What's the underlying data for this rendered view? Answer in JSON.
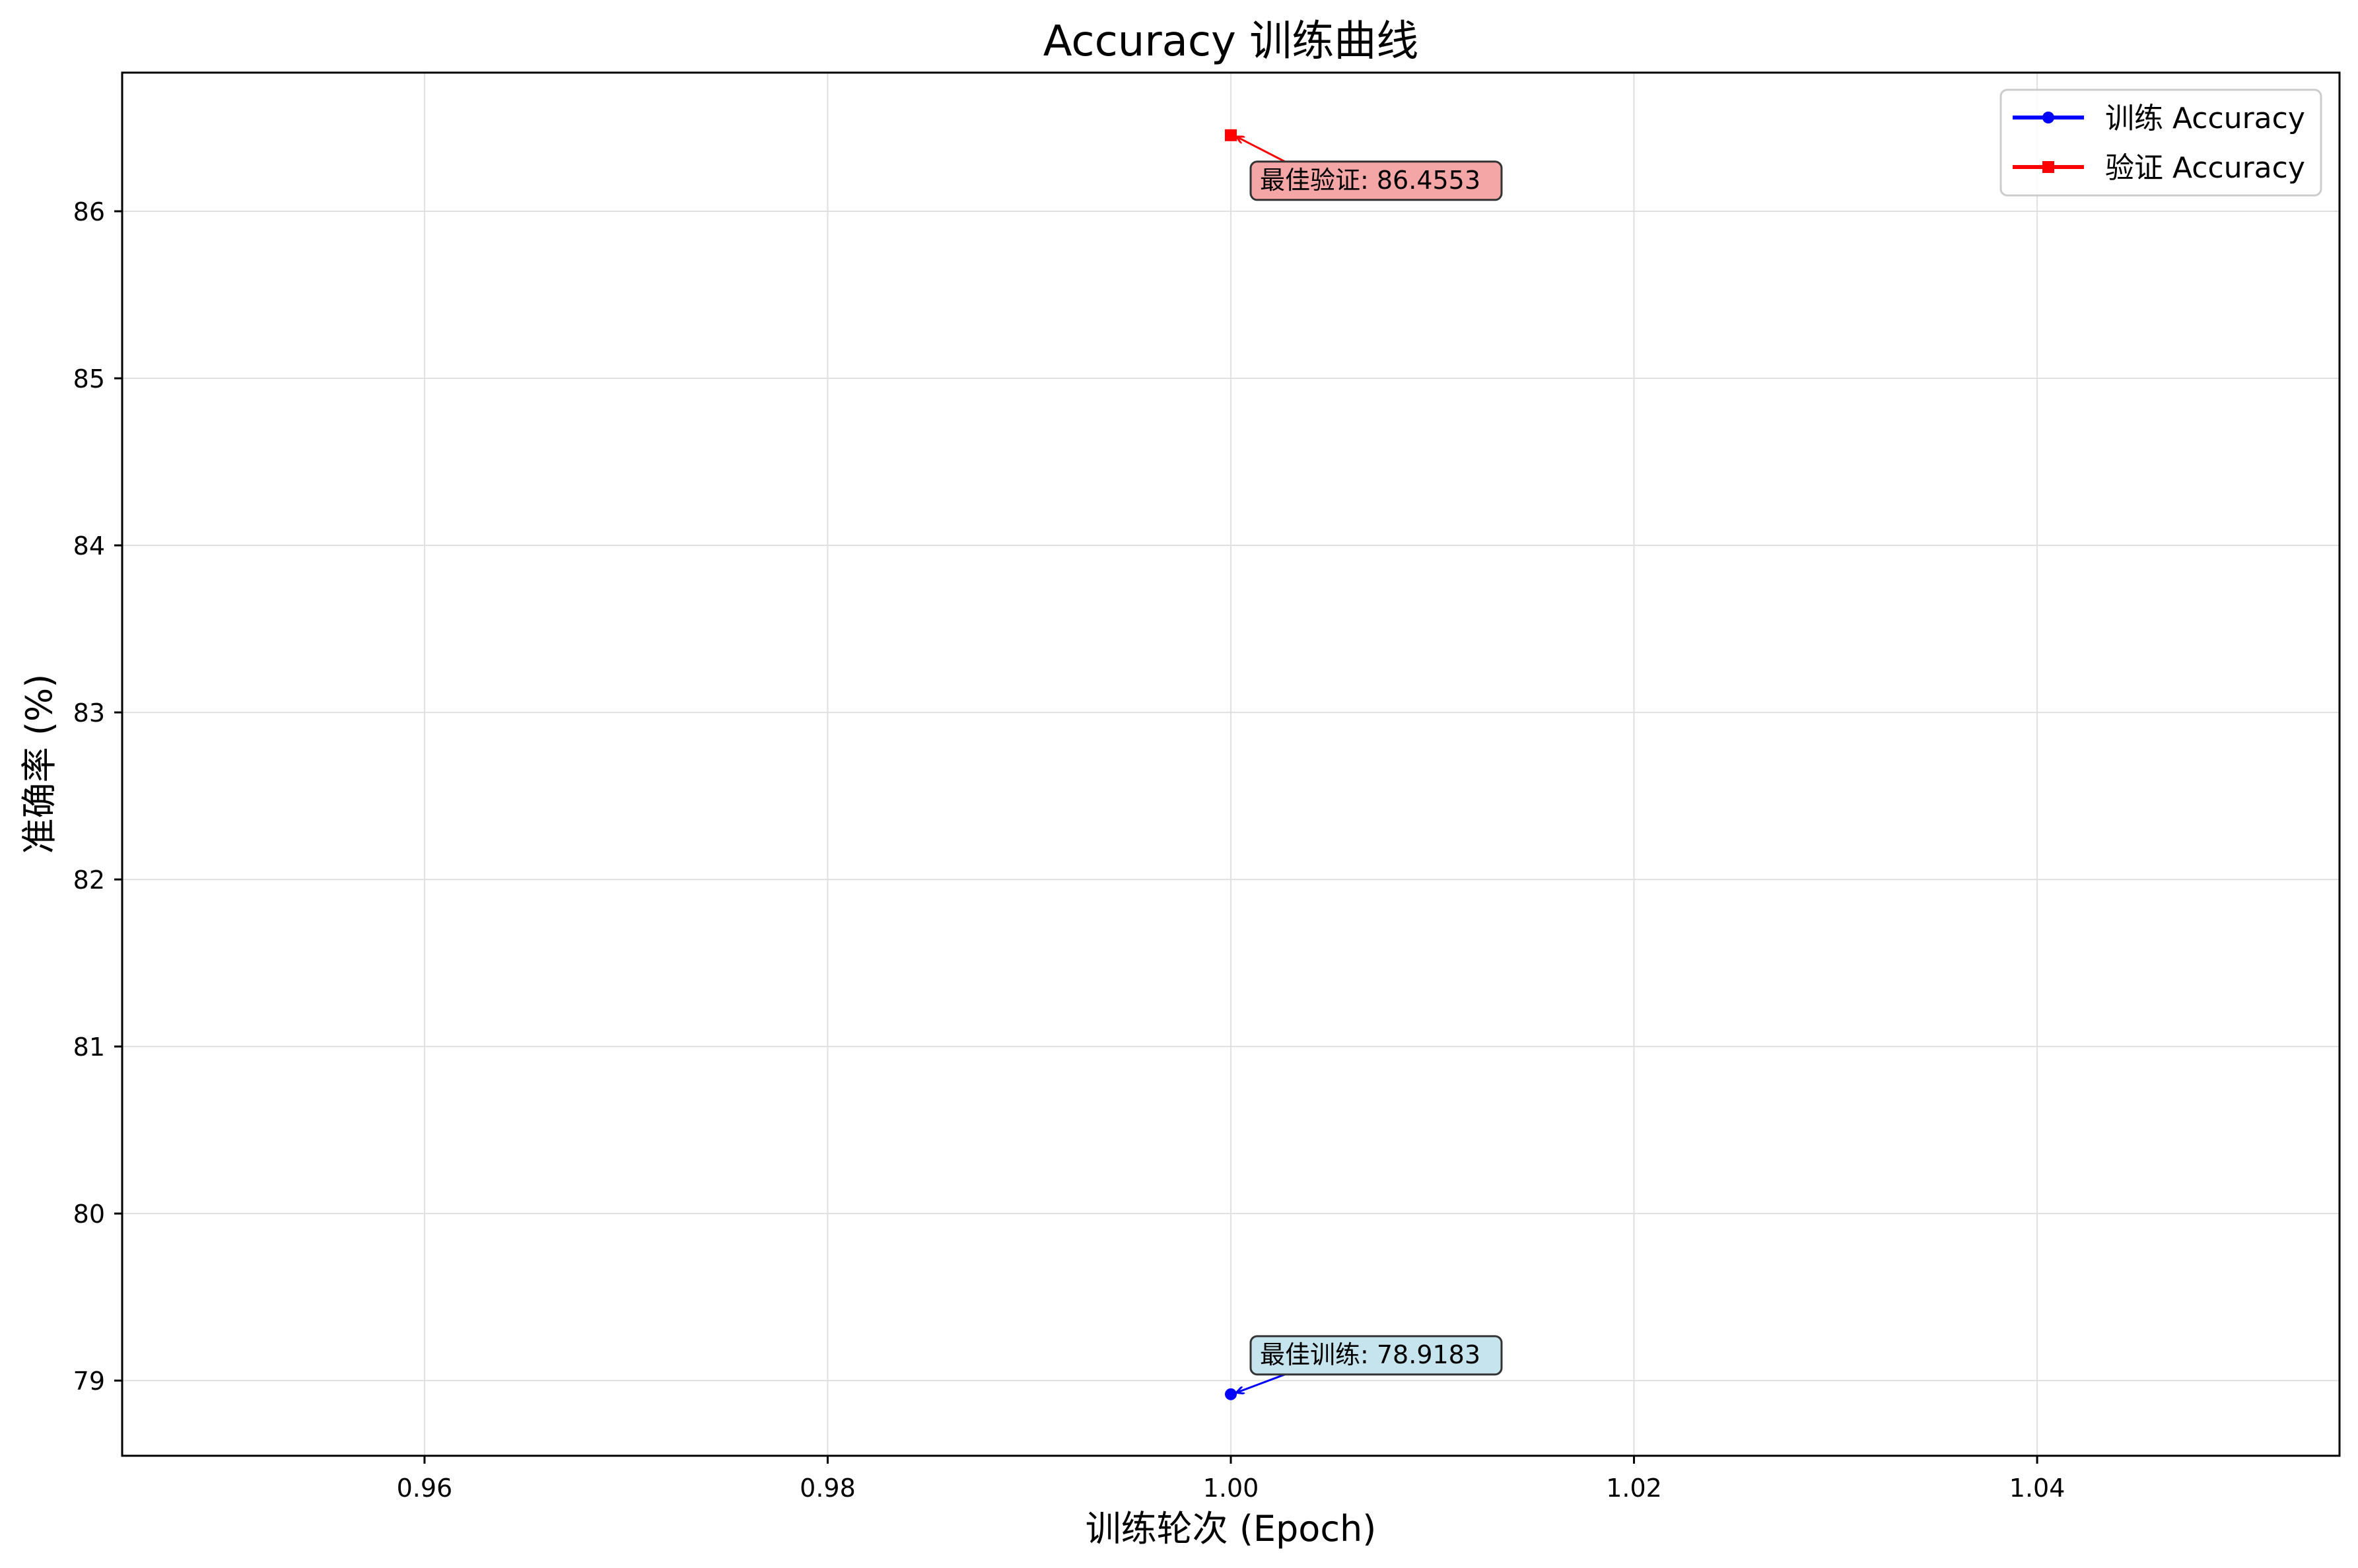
{
  "chart_data": {
    "type": "line",
    "title": "Accuracy 训练曲线",
    "xlabel": "训练轮次 (Epoch)",
    "ylabel": "准确率 (%)",
    "xlim": [
      0.945,
      1.055
    ],
    "ylim": [
      78.55,
      86.83
    ],
    "x_ticks": [
      0.96,
      0.98,
      1.0,
      1.02,
      1.04
    ],
    "x_tick_labels": [
      "0.96",
      "0.98",
      "1.00",
      "1.02",
      "1.04"
    ],
    "y_ticks": [
      79,
      80,
      81,
      82,
      83,
      84,
      85,
      86
    ],
    "y_tick_labels": [
      "79",
      "80",
      "81",
      "82",
      "83",
      "84",
      "85",
      "86"
    ],
    "grid": true,
    "legend_position": "top-right",
    "series": [
      {
        "name": "训练 Accuracy",
        "color": "#0000ff",
        "marker": "circle",
        "x": [
          1.0
        ],
        "y": [
          78.9183
        ]
      },
      {
        "name": "验证 Accuracy",
        "color": "#ff0000",
        "marker": "square",
        "x": [
          1.0
        ],
        "y": [
          86.4553
        ]
      }
    ],
    "annotations": [
      {
        "text": "最佳训练: 78.9183",
        "x": 1.0,
        "y": 78.9183,
        "box_color": "#add8e6",
        "arrow_color": "#0000ff",
        "placement": "above-right"
      },
      {
        "text": "最佳验证: 86.4553",
        "x": 1.0,
        "y": 86.4553,
        "box_color": "#f08080",
        "arrow_color": "#ff0000",
        "placement": "below-right"
      }
    ]
  }
}
